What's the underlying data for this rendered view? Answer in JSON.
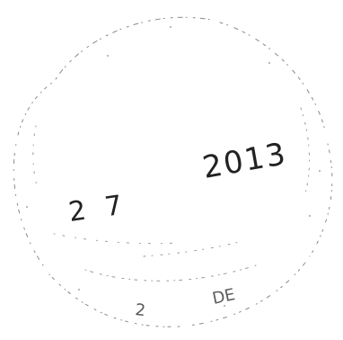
{
  "stamp": {
    "kind": "circular date stamp (faint, partially printed)",
    "ink_color": "#222222",
    "visible_text": {
      "day_fragment": "2 7",
      "year": "2013",
      "bottom_fragment": "2",
      "bottom_fragment_2": "DE"
    }
  }
}
